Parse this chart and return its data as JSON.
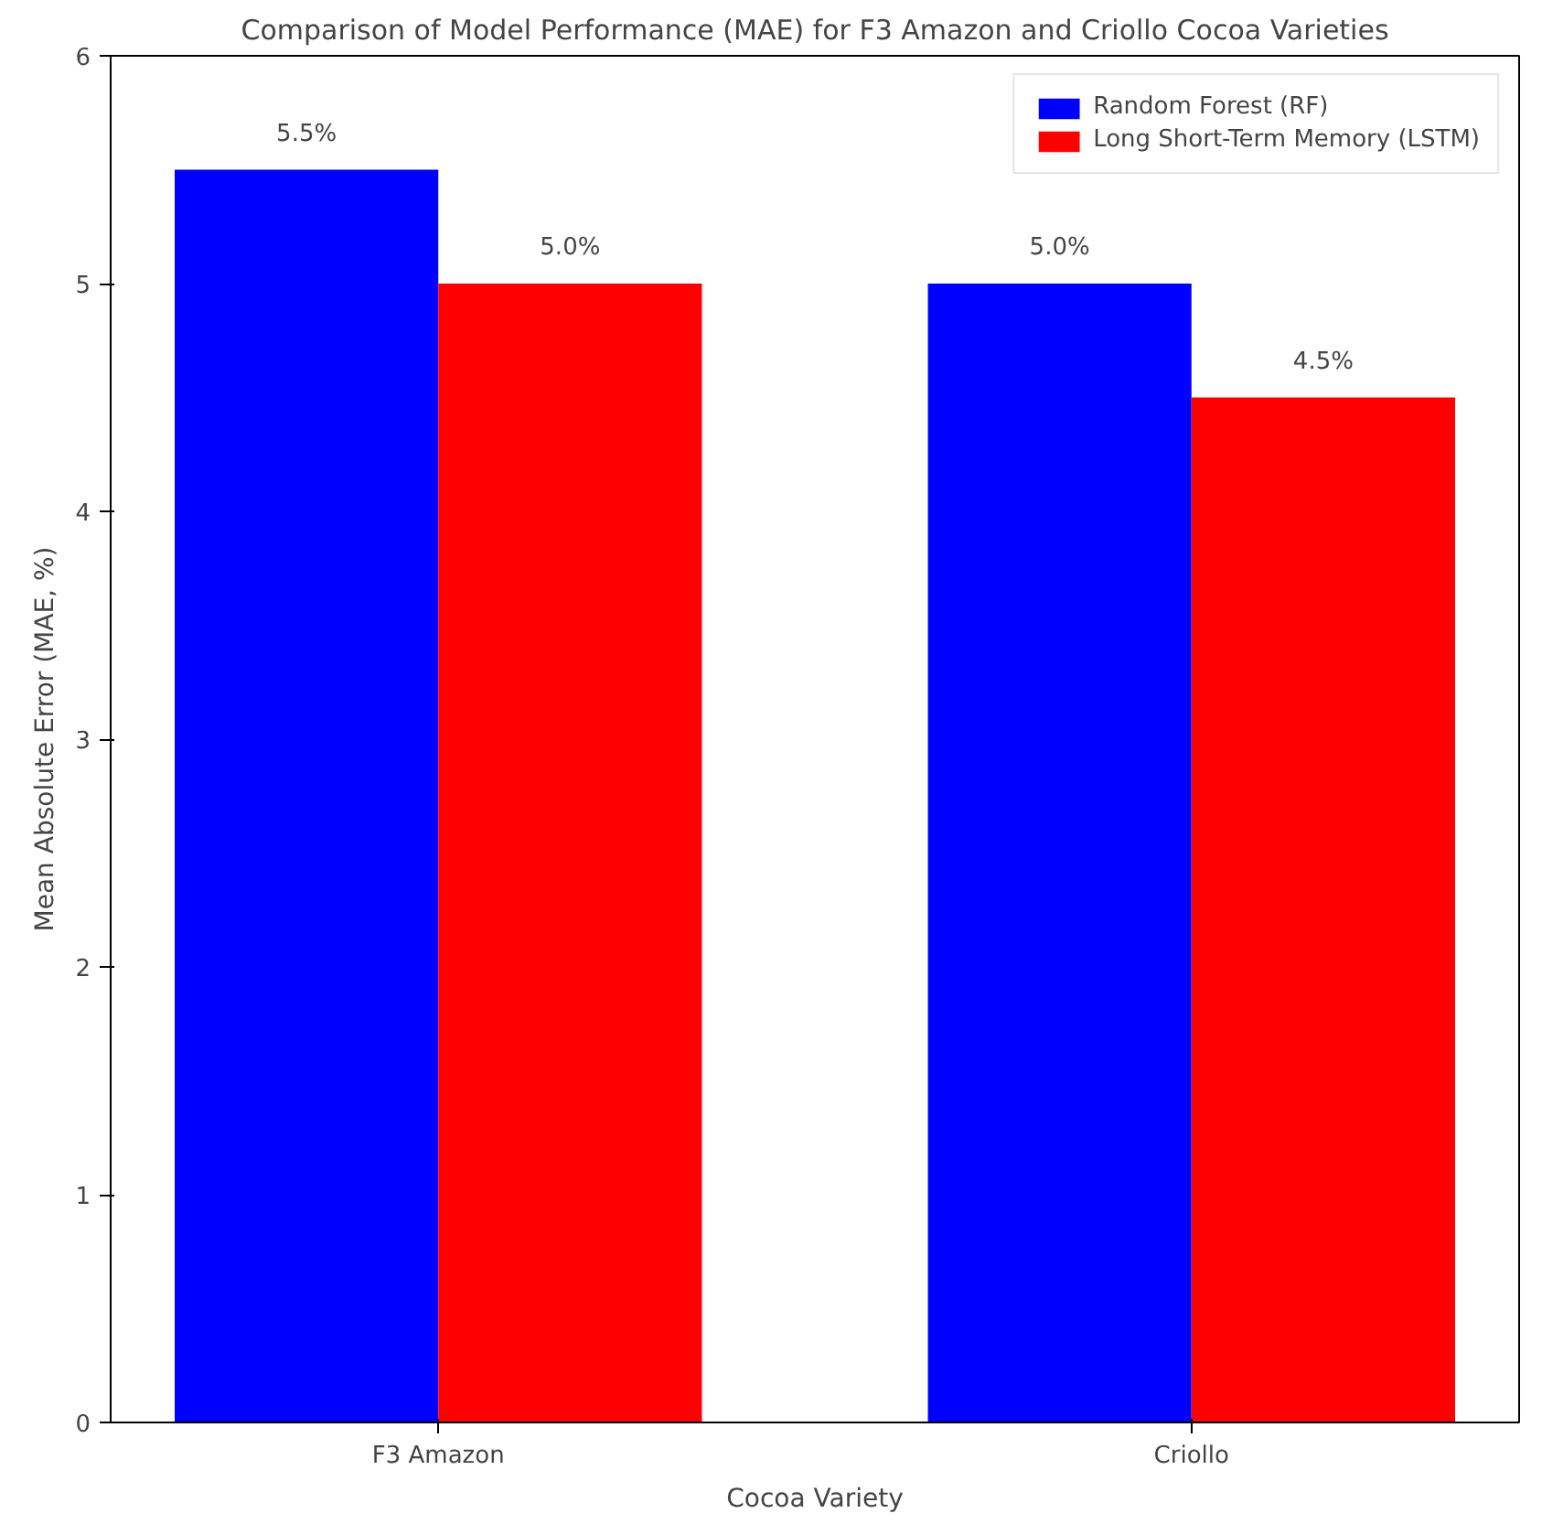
{
  "chart_data": {
    "type": "bar",
    "title": "Comparison of Model Performance (MAE) for F3 Amazon and Criollo Cocoa Varieties",
    "xlabel": "Cocoa Variety",
    "ylabel": "Mean Absolute Error (MAE, %)",
    "categories": [
      "F3 Amazon",
      "Criollo"
    ],
    "series": [
      {
        "name": "Random Forest (RF)",
        "color": "#0000ff",
        "values": [
          5.5,
          5.0
        ],
        "value_labels": [
          "5.5%",
          "5.0%"
        ]
      },
      {
        "name": "Long Short-Term Memory (LSTM)",
        "color": "#ff0000",
        "values": [
          5.0,
          4.5
        ],
        "value_labels": [
          "5.0%",
          "4.5%"
        ]
      }
    ],
    "ylim": [
      0,
      6
    ],
    "yticks": [
      0,
      1,
      2,
      3,
      4,
      5,
      6
    ],
    "grid": false,
    "legend": "top right"
  }
}
